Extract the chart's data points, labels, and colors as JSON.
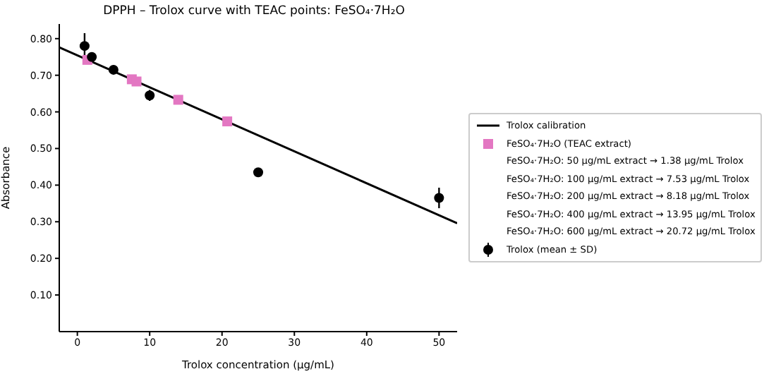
{
  "chart_data": {
    "type": "scatter",
    "title": "DPPH – Trolox curve with TEAC points: FeSO₄·7H₂O",
    "xlabel": "Trolox concentration (µg/mL)",
    "ylabel": "Absorbance",
    "xlim": [
      -2.5,
      52.5
    ],
    "xticks": [
      0,
      10,
      20,
      30,
      40,
      50
    ],
    "ylim": [
      0,
      0.84
    ],
    "yticks": [
      {
        "value": 0.1,
        "label": "0.10"
      },
      {
        "value": 0.2,
        "label": "0.20"
      },
      {
        "value": 0.3,
        "label": "0.30"
      },
      {
        "value": 0.4,
        "label": "0.40"
      },
      {
        "value": 0.5,
        "label": "0.50"
      },
      {
        "value": 0.6,
        "label": "0.60"
      },
      {
        "value": 0.7,
        "label": "0.70"
      },
      {
        "value": 0.8,
        "label": "0.80"
      }
    ],
    "grid": false,
    "legend": "right",
    "series": [
      {
        "name": "Trolox calibration",
        "type": "line",
        "color": "#000000",
        "x": [
          -2.5,
          52.5
        ],
        "values": [
          0.776,
          0.296
        ]
      },
      {
        "name": "FeSO₄·7H₂O (TEAC extract)",
        "color": "#e377c2",
        "marker": "square",
        "x": [
          1.38,
          7.53,
          8.18,
          13.95,
          20.72
        ],
        "values": [
          0.742,
          0.689,
          0.683,
          0.633,
          0.574
        ]
      },
      {
        "name": "Trolox (mean ± SD)",
        "color": "#000000",
        "marker": "circle",
        "x": [
          1,
          2,
          5,
          10,
          25,
          50
        ],
        "values": [
          0.78,
          0.75,
          0.715,
          0.645,
          0.435,
          0.365
        ],
        "errors": [
          0.035,
          0.012,
          0.012,
          0.015,
          null,
          0.028
        ]
      }
    ],
    "annotations": [
      "FeSO₄·7H₂O: 50 µg/mL extract → 1.38 µg/mL Trolox",
      "FeSO₄·7H₂O: 100 µg/mL extract → 7.53 µg/mL Trolox",
      "FeSO₄·7H₂O: 200 µg/mL extract → 8.18 µg/mL Trolox",
      "FeSO₄·7H₂O: 400 µg/mL extract → 13.95 µg/mL Trolox",
      "FeSO₄·7H₂O: 600 µg/mL extract → 20.72 µg/mL Trolox"
    ]
  }
}
